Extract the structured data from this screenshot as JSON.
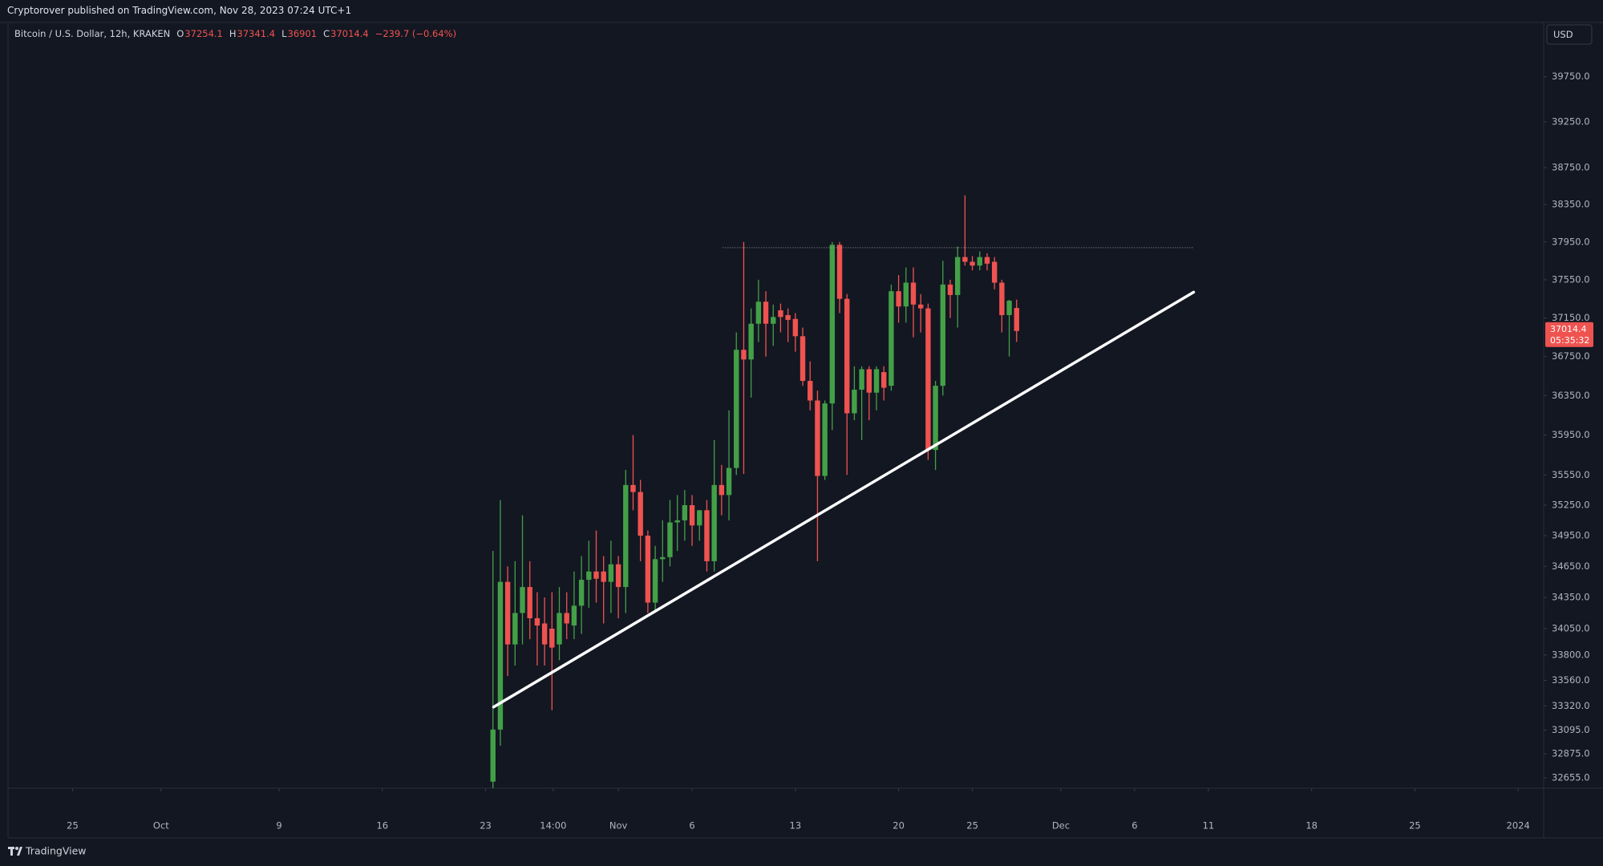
{
  "header": {
    "published": "Cryptorover published on TradingView.com, Nov 28, 2023 07:24 UTC+1"
  },
  "footer": {
    "logo": "TradingView"
  },
  "chart_data": {
    "type": "candlestick",
    "symbol": "Bitcoin / U.S. Dollar, 12h, KRAKEN",
    "legend_labels": {
      "open": "O",
      "high": "H",
      "low": "L",
      "close": "C"
    },
    "change_label": "−239.7 (−0.64%)",
    "currency": "USD",
    "countdown": "05:35:32",
    "log_scale": true,
    "grid": false,
    "x": [
      "2023-10-23T12:00",
      "2023-10-24T00:00",
      "2023-10-24T12:00",
      "2023-10-25T00:00",
      "2023-10-25T12:00",
      "2023-10-26T00:00",
      "2023-10-26T12:00",
      "2023-10-27T00:00",
      "2023-10-27T12:00",
      "2023-10-28T00:00",
      "2023-10-28T12:00",
      "2023-10-29T00:00",
      "2023-10-29T12:00",
      "2023-10-30T00:00",
      "2023-10-30T12:00",
      "2023-10-31T00:00",
      "2023-10-31T12:00",
      "2023-11-01T00:00",
      "2023-11-01T12:00",
      "2023-11-02T00:00",
      "2023-11-02T12:00",
      "2023-11-03T00:00",
      "2023-11-03T12:00",
      "2023-11-04T00:00",
      "2023-11-04T12:00",
      "2023-11-05T00:00",
      "2023-11-05T12:00",
      "2023-11-06T00:00",
      "2023-11-06T12:00",
      "2023-11-07T00:00",
      "2023-11-07T12:00",
      "2023-11-08T00:00",
      "2023-11-08T12:00",
      "2023-11-09T00:00",
      "2023-11-09T12:00",
      "2023-11-10T00:00",
      "2023-11-10T12:00",
      "2023-11-11T00:00",
      "2023-11-11T12:00",
      "2023-11-12T00:00",
      "2023-11-12T12:00",
      "2023-11-13T00:00",
      "2023-11-13T12:00",
      "2023-11-14T00:00",
      "2023-11-14T12:00",
      "2023-11-15T00:00",
      "2023-11-15T12:00",
      "2023-11-16T00:00",
      "2023-11-16T12:00",
      "2023-11-17T00:00",
      "2023-11-17T12:00",
      "2023-11-18T00:00",
      "2023-11-18T12:00",
      "2023-11-19T00:00",
      "2023-11-19T12:00",
      "2023-11-20T00:00",
      "2023-11-20T12:00",
      "2023-11-21T00:00",
      "2023-11-21T12:00",
      "2023-11-22T00:00",
      "2023-11-22T12:00",
      "2023-11-23T00:00",
      "2023-11-23T12:00",
      "2023-11-24T00:00",
      "2023-11-24T12:00",
      "2023-11-25T00:00",
      "2023-11-25T12:00",
      "2023-11-26T00:00",
      "2023-11-26T12:00",
      "2023-11-27T00:00",
      "2023-11-27T12:00",
      "2023-11-28T00:00"
    ],
    "series": [
      {
        "name": "Bitcoin / U.S. Dollar",
        "up_color": "#43a047",
        "down_color": "#ef5350",
        "open": [
          32620,
          33100,
          34500,
          33900,
          34200,
          34450,
          34150,
          34100,
          34050,
          33900,
          34200,
          34080,
          34270,
          34520,
          34600,
          34600,
          34500,
          34670,
          34450,
          35450,
          35380,
          34950,
          34300,
          34720,
          34740,
          35080,
          35100,
          35250,
          35050,
          35200,
          34700,
          35450,
          35350,
          35620,
          36820,
          36720,
          37090,
          37320,
          37090,
          37230,
          37180,
          37140,
          36960,
          36500,
          36300,
          35540,
          36270,
          37920,
          37350,
          36170,
          36410,
          36620,
          36380,
          36590,
          36450,
          37430,
          37270,
          37520,
          37290,
          37250,
          35800,
          36450,
          37500,
          37390,
          37790,
          37740,
          37700,
          37790,
          37740,
          37520,
          37180,
          37254.1
        ],
        "high": [
          34800,
          35300,
          34650,
          34700,
          35150,
          34700,
          34400,
          34350,
          34400,
          34450,
          34400,
          34600,
          34750,
          34900,
          35000,
          34750,
          34900,
          34750,
          35600,
          35950,
          35500,
          35000,
          34850,
          35100,
          35300,
          35350,
          35400,
          35350,
          35200,
          35300,
          35900,
          35650,
          36200,
          37000,
          37950,
          37250,
          37550,
          37430,
          37290,
          37300,
          37250,
          37200,
          37050,
          36700,
          36400,
          36300,
          37950,
          37950,
          37400,
          36650,
          36650,
          36650,
          36650,
          36650,
          37500,
          37600,
          37680,
          37680,
          37400,
          37300,
          36500,
          37750,
          37550,
          37900,
          38450,
          37800,
          37850,
          37830,
          37790,
          37550,
          37340,
          37341.4
        ],
        "low": [
          32560,
          32950,
          33600,
          33700,
          33900,
          33950,
          33700,
          33700,
          33280,
          33750,
          33950,
          33950,
          34000,
          34250,
          34300,
          34100,
          34200,
          34150,
          34200,
          35200,
          34700,
          34200,
          34200,
          34500,
          34650,
          34800,
          34900,
          34850,
          34900,
          34600,
          34600,
          35150,
          35100,
          35550,
          35560,
          36330,
          36900,
          36750,
          36860,
          37000,
          36900,
          36800,
          36450,
          36200,
          34700,
          35500,
          36000,
          37200,
          35550,
          36100,
          35900,
          36100,
          36200,
          36300,
          36400,
          37100,
          37100,
          36950,
          37000,
          35700,
          35600,
          36350,
          37150,
          37050,
          37700,
          37650,
          37650,
          37650,
          37450,
          37000,
          36750,
          36901.0
        ],
        "close": [
          33100,
          34500,
          33900,
          34200,
          34450,
          34150,
          34080,
          33900,
          33870,
          34200,
          34100,
          34270,
          34520,
          34600,
          34530,
          34500,
          34670,
          34450,
          35450,
          35380,
          34950,
          34300,
          34720,
          34740,
          35080,
          35100,
          35250,
          35050,
          35200,
          34700,
          35450,
          35350,
          35620,
          36820,
          36720,
          37090,
          37320,
          37090,
          37160,
          37160,
          37130,
          36960,
          36500,
          36300,
          35540,
          36270,
          37920,
          37350,
          36170,
          36410,
          36620,
          36380,
          36620,
          36430,
          37430,
          37270,
          37520,
          37290,
          37250,
          35800,
          36450,
          37500,
          37390,
          37790,
          37740,
          37700,
          37790,
          37720,
          37520,
          37180,
          37330,
          37014.4
        ]
      }
    ],
    "ylim": [
      32560,
      40360
    ],
    "yticks": [
      {
        "value": 39750,
        "label": "39750.0"
      },
      {
        "value": 39250,
        "label": "39250.0"
      },
      {
        "value": 38750,
        "label": "38750.0"
      },
      {
        "value": 38350,
        "label": "38350.0"
      },
      {
        "value": 37950,
        "label": "37950.0"
      },
      {
        "value": 37550,
        "label": "37550.0"
      },
      {
        "value": 37150,
        "label": "37150.0"
      },
      {
        "value": 36750,
        "label": "36750.0"
      },
      {
        "value": 36350,
        "label": "36350.0"
      },
      {
        "value": 35950,
        "label": "35950.0"
      },
      {
        "value": 35550,
        "label": "35550.0"
      },
      {
        "value": 35250,
        "label": "35250.0"
      },
      {
        "value": 34950,
        "label": "34950.0"
      },
      {
        "value": 34650,
        "label": "34650.0"
      },
      {
        "value": 34350,
        "label": "34350.0"
      },
      {
        "value": 34050,
        "label": "34050.0"
      },
      {
        "value": 33800,
        "label": "33800.0"
      },
      {
        "value": 33560,
        "label": "33560.0"
      },
      {
        "value": 33320,
        "label": "33320.0"
      },
      {
        "value": 33095,
        "label": "33095.0"
      },
      {
        "value": 32875,
        "label": "32875.0"
      },
      {
        "value": 32655,
        "label": "32655.0"
      }
    ],
    "xlim": [
      "2023-09-20T15:00",
      "2024-01-02T17:30"
    ],
    "xticks": [
      {
        "value": "2023-09-25T00:00",
        "label": "25"
      },
      {
        "value": "2023-10-01T00:00",
        "label": "Oct"
      },
      {
        "value": "2023-10-09T00:00",
        "label": "9"
      },
      {
        "value": "2023-10-16T00:00",
        "label": "16"
      },
      {
        "value": "2023-10-23T00:00",
        "label": "23"
      },
      {
        "value": "2023-10-27T14:00",
        "label": "14:00"
      },
      {
        "value": "2023-11-01T00:00",
        "label": "Nov"
      },
      {
        "value": "2023-11-06T00:00",
        "label": "6"
      },
      {
        "value": "2023-11-13T00:00",
        "label": "13"
      },
      {
        "value": "2023-11-20T00:00",
        "label": "20"
      },
      {
        "value": "2023-11-25T00:00",
        "label": "25"
      },
      {
        "value": "2023-12-01T00:00",
        "label": "Dec"
      },
      {
        "value": "2023-12-06T00:00",
        "label": "6"
      },
      {
        "value": "2023-12-11T00:00",
        "label": "11"
      },
      {
        "value": "2023-12-18T00:00",
        "label": "18"
      },
      {
        "value": "2023-12-25T00:00",
        "label": "25"
      },
      {
        "value": "2024-01-01T00:00",
        "label": "2024"
      }
    ],
    "annotations": [
      {
        "type": "trendline",
        "x": [
          "2023-10-23T13:00",
          "2023-12-10T00:00"
        ],
        "values": [
          33310,
          37420
        ],
        "color": "#ffffff"
      },
      {
        "type": "hline",
        "x": [
          "2023-11-08T02:00",
          "2023-12-09T23:00"
        ],
        "value": 37890,
        "color": "#9598a1"
      }
    ]
  }
}
